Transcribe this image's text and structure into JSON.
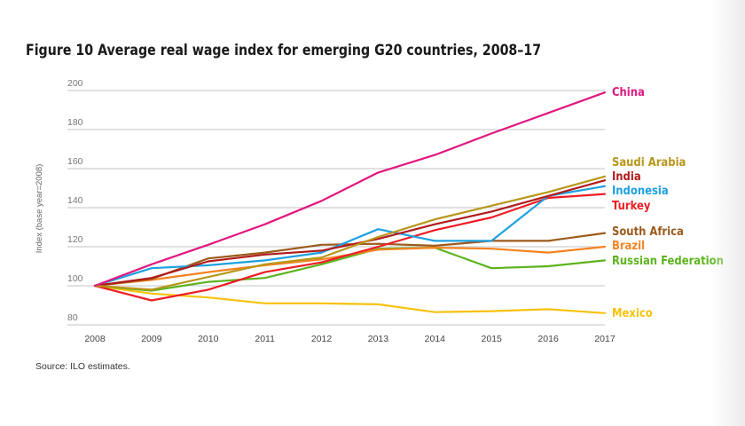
{
  "figure": {
    "title": "Figure 10  Average real wage index for emerging G20 countries, 2008–17",
    "source": "Source: ILO estimates."
  },
  "chart_data": {
    "type": "line",
    "title": "Figure 10  Average real wage index for emerging G20 countries, 2008–17",
    "xlabel": "",
    "ylabel": "Index (base year=2008)",
    "x": [
      "2008",
      "2009",
      "2010",
      "2011",
      "2012",
      "2013",
      "2014",
      "2015",
      "2016",
      "2017"
    ],
    "ylim": [
      80,
      200
    ],
    "yticks": [
      "80",
      "100",
      "120",
      "140",
      "160",
      "180",
      "200"
    ],
    "grid": true,
    "legend": "inline-right",
    "series": [
      {
        "name": "China",
        "color": "#e0187f",
        "values": [
          100,
          111,
          121,
          131.5,
          143.5,
          158,
          167,
          178,
          188.5,
          199
        ]
      },
      {
        "name": "Saudi Arabia",
        "color": "#b8961a",
        "values": [
          100,
          98,
          104.5,
          111,
          114.5,
          125,
          134,
          141,
          148,
          156
        ]
      },
      {
        "name": "India",
        "color": "#b01c1c",
        "values": [
          100,
          104,
          112.5,
          116,
          118,
          124,
          131.5,
          138,
          146,
          154
        ]
      },
      {
        "name": "Indonesia",
        "color": "#1ea0e0",
        "values": [
          100,
          109,
          110.5,
          113,
          117,
          129,
          123,
          123,
          146,
          151
        ]
      },
      {
        "name": "Turkey",
        "color": "#ee1c24",
        "values": [
          100,
          92.5,
          98,
          107,
          112,
          120,
          128.5,
          135,
          145,
          147
        ]
      },
      {
        "name": "South Africa",
        "color": "#9c5a1c",
        "values": [
          100,
          103.5,
          114,
          117,
          121,
          121.5,
          120.5,
          123,
          123,
          127
        ]
      },
      {
        "name": "Brazil",
        "color": "#f58220",
        "values": [
          100,
          103,
          107,
          110.5,
          113.5,
          118.5,
          119.5,
          119,
          117,
          120
        ]
      },
      {
        "name": "Russian Federation",
        "color": "#5db31e",
        "values": [
          100,
          97.5,
          102,
          104,
          111,
          119,
          119.5,
          109,
          110,
          113
        ]
      },
      {
        "name": "Mexico",
        "color": "#f7c20c",
        "values": [
          100,
          96,
          94,
          91,
          91,
          90.5,
          86.5,
          87,
          88,
          86
        ]
      }
    ],
    "label_order": [
      "China",
      "Saudi Arabia",
      "India",
      "Indonesia",
      "Turkey",
      "South Africa",
      "Brazil",
      "Russian Federation",
      "Mexico"
    ]
  }
}
